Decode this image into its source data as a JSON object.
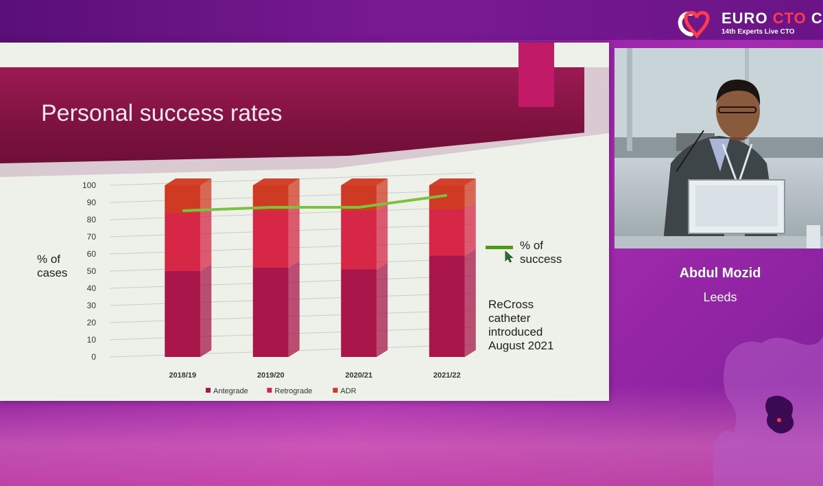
{
  "event": {
    "logo_text_euro": "EURO",
    "logo_text_cto": "CTO",
    "logo_text_club": "CLUB",
    "subtitle": "14th Experts Live CTO",
    "brand_red": "#ff3b4a",
    "brand_purple": "#8e1fa2"
  },
  "slide": {
    "title": "Personal success rates",
    "y_axis_title": "% of cases",
    "success_legend": "% of success",
    "note": "ReCross catheter introduced August 2021"
  },
  "chart_data": {
    "type": "bar",
    "stacked": true,
    "categories": [
      "2018/19",
      "2019/20",
      "2020/21",
      "2021/22"
    ],
    "series": [
      {
        "name": "Antegrade",
        "values": [
          50,
          52,
          51,
          59
        ],
        "color": "#a8164a"
      },
      {
        "name": "Retrograde",
        "values": [
          34,
          33,
          34,
          27
        ],
        "color": "#d62746"
      },
      {
        "name": "ADR",
        "values": [
          16,
          15,
          15,
          14
        ],
        "color": "#cf3a22"
      }
    ],
    "line_series": {
      "name": "% of success",
      "values": [
        82,
        84,
        84,
        91
      ],
      "color": "#7cc23a"
    },
    "ylim": [
      0,
      100
    ],
    "yticks": [
      0,
      10,
      20,
      30,
      40,
      50,
      60,
      70,
      80,
      90,
      100
    ],
    "grid": true,
    "legend": "bottom"
  },
  "speaker": {
    "name": "Abdul Mozid",
    "city": "Leeds"
  }
}
